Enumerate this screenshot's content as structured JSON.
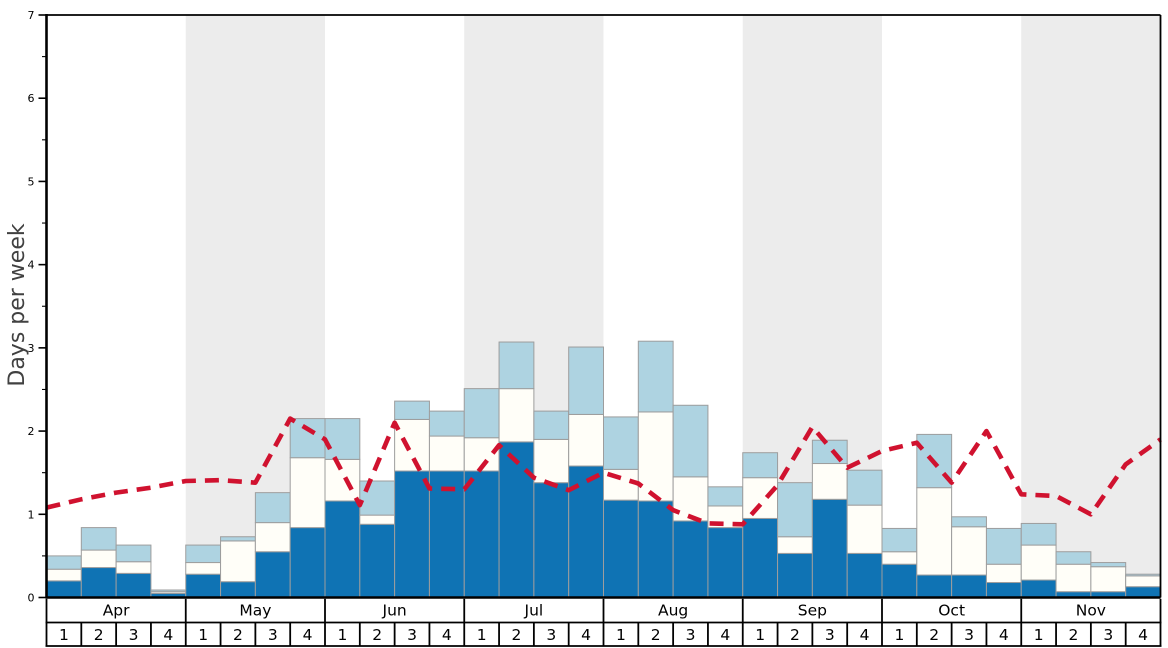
{
  "chart_data": {
    "type": "bar",
    "stacked": true,
    "title": "",
    "xlabel": "",
    "ylabel": "Days per week",
    "ylim": [
      0,
      7
    ],
    "y_major_ticks": [
      0,
      1,
      2,
      3,
      4,
      5,
      6,
      7
    ],
    "y_tick_labels": [
      "0",
      "1",
      "2",
      "3",
      "4",
      "5",
      "6",
      "7"
    ],
    "y_minor_tick_step": 0.5,
    "grid": false,
    "legend": "none",
    "months": [
      "Apr",
      "May",
      "Jun",
      "Jul",
      "Aug",
      "Sep",
      "Oct",
      "Nov"
    ],
    "weeks_per_month": 4,
    "week_labels_per_month": [
      "1",
      "2",
      "3",
      "4"
    ],
    "month_band_shaded": [
      false,
      true,
      false,
      true,
      false,
      true,
      false,
      true
    ],
    "categories": [
      "Apr W1",
      "Apr W2",
      "Apr W3",
      "Apr W4",
      "May W1",
      "May W2",
      "May W3",
      "May W4",
      "Jun W1",
      "Jun W2",
      "Jun W3",
      "Jun W4",
      "Jul W1",
      "Jul W2",
      "Jul W3",
      "Jul W4",
      "Aug W1",
      "Aug W2",
      "Aug W3",
      "Aug W4",
      "Sep W1",
      "Sep W2",
      "Sep W3",
      "Sep W4",
      "Oct W1",
      "Oct W2",
      "Oct W3",
      "Oct W4",
      "Nov W1",
      "Nov W2",
      "Nov W3",
      "Nov W4"
    ],
    "series": [
      {
        "name": "dark-blue-segment",
        "color": "#0f73b4",
        "cumulative_top": [
          0.2,
          0.36,
          0.29,
          0.05,
          0.28,
          0.19,
          0.55,
          0.84,
          1.16,
          0.88,
          1.52,
          1.52,
          1.52,
          1.87,
          1.38,
          1.58,
          1.17,
          1.16,
          0.92,
          0.84,
          0.95,
          0.53,
          1.18,
          0.53,
          0.4,
          0.27,
          0.27,
          0.18,
          0.21,
          0.07,
          0.07,
          0.13
        ]
      },
      {
        "name": "white-segment",
        "color": "#fffef8",
        "cumulative_top": [
          0.34,
          0.57,
          0.43,
          0.07,
          0.42,
          0.68,
          0.9,
          1.68,
          1.66,
          0.99,
          2.14,
          1.94,
          1.92,
          2.51,
          1.9,
          2.2,
          1.54,
          2.23,
          1.45,
          1.1,
          1.44,
          0.73,
          1.61,
          1.11,
          0.55,
          1.32,
          0.85,
          0.4,
          0.63,
          0.4,
          0.37,
          0.26
        ]
      },
      {
        "name": "light-blue-segment",
        "color": "#aed3e1",
        "cumulative_top": [
          0.5,
          0.84,
          0.63,
          0.09,
          0.63,
          0.73,
          1.26,
          2.15,
          2.15,
          1.4,
          2.36,
          2.24,
          2.51,
          3.07,
          2.24,
          3.01,
          2.17,
          3.08,
          2.31,
          1.33,
          1.74,
          1.38,
          1.89,
          1.53,
          0.83,
          1.96,
          0.97,
          0.83,
          0.89,
          0.55,
          0.42,
          0.28
        ]
      }
    ],
    "line_series": {
      "name": "red-dashed-line",
      "color": "#d0122f",
      "dash": [
        14,
        9
      ],
      "x_positions": "week_start_boundaries_plus_right_edge",
      "values": [
        1.08,
        1.18,
        1.26,
        1.32,
        1.4,
        1.41,
        1.38,
        2.15,
        1.9,
        1.11,
        2.1,
        1.31,
        1.3,
        1.83,
        1.44,
        1.29,
        1.5,
        1.37,
        1.05,
        0.89,
        0.88,
        1.35,
        2.05,
        1.56,
        1.76,
        1.86,
        1.38,
        2.0,
        1.24,
        1.22,
        1.0,
        1.6,
        1.9
      ]
    },
    "colors": {
      "shaded_band": "#ececec",
      "bar_border": "#9d9d9d",
      "axis": "#000000",
      "tick_text": "#000000",
      "ylabel_text": "#414141",
      "background": "#ffffff"
    }
  }
}
